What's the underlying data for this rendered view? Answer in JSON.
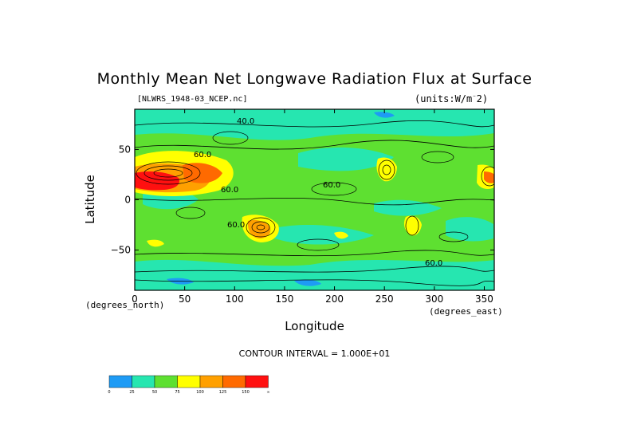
{
  "chart_data": {
    "type": "heatmap",
    "title": "Monthly Mean Net Longwave Radiation Flux at Surface",
    "subtitle_left": "[NLWRS_1948-03_NCEP.nc]",
    "subtitle_right": "(units:W/m^2)",
    "xlabel": "Longitude",
    "ylabel": "Latitude",
    "x_units": "(degrees_north)",
    "x_units_east": "(degrees_east)",
    "xlim": [
      0,
      360
    ],
    "ylim": [
      -90,
      90
    ],
    "x_ticks": [
      0,
      50,
      100,
      150,
      200,
      250,
      300,
      350
    ],
    "y_ticks": [
      50,
      0,
      -50
    ],
    "x_tick_labels": [
      "0",
      "50",
      "100",
      "150",
      "200",
      "250",
      "300",
      "350"
    ],
    "y_tick_labels": [
      "50",
      "0",
      "−50"
    ],
    "contour_note": "CONTOUR INTERVAL = 1.000E+01",
    "contour_labels": [
      "40.0",
      "60.0",
      "60.0",
      "60.0",
      "60.0",
      "60.0"
    ],
    "colorbar": {
      "levels": [
        "0",
        "25",
        "50",
        "75",
        "100",
        "125",
        "150",
        "∞"
      ],
      "colors": [
        "#1e9bf5",
        "#26e6b0",
        "#5ee031",
        "#ffff00",
        "#ffa000",
        "#ff6a00",
        "#ff1010"
      ]
    },
    "background_color": "#5ee031"
  }
}
